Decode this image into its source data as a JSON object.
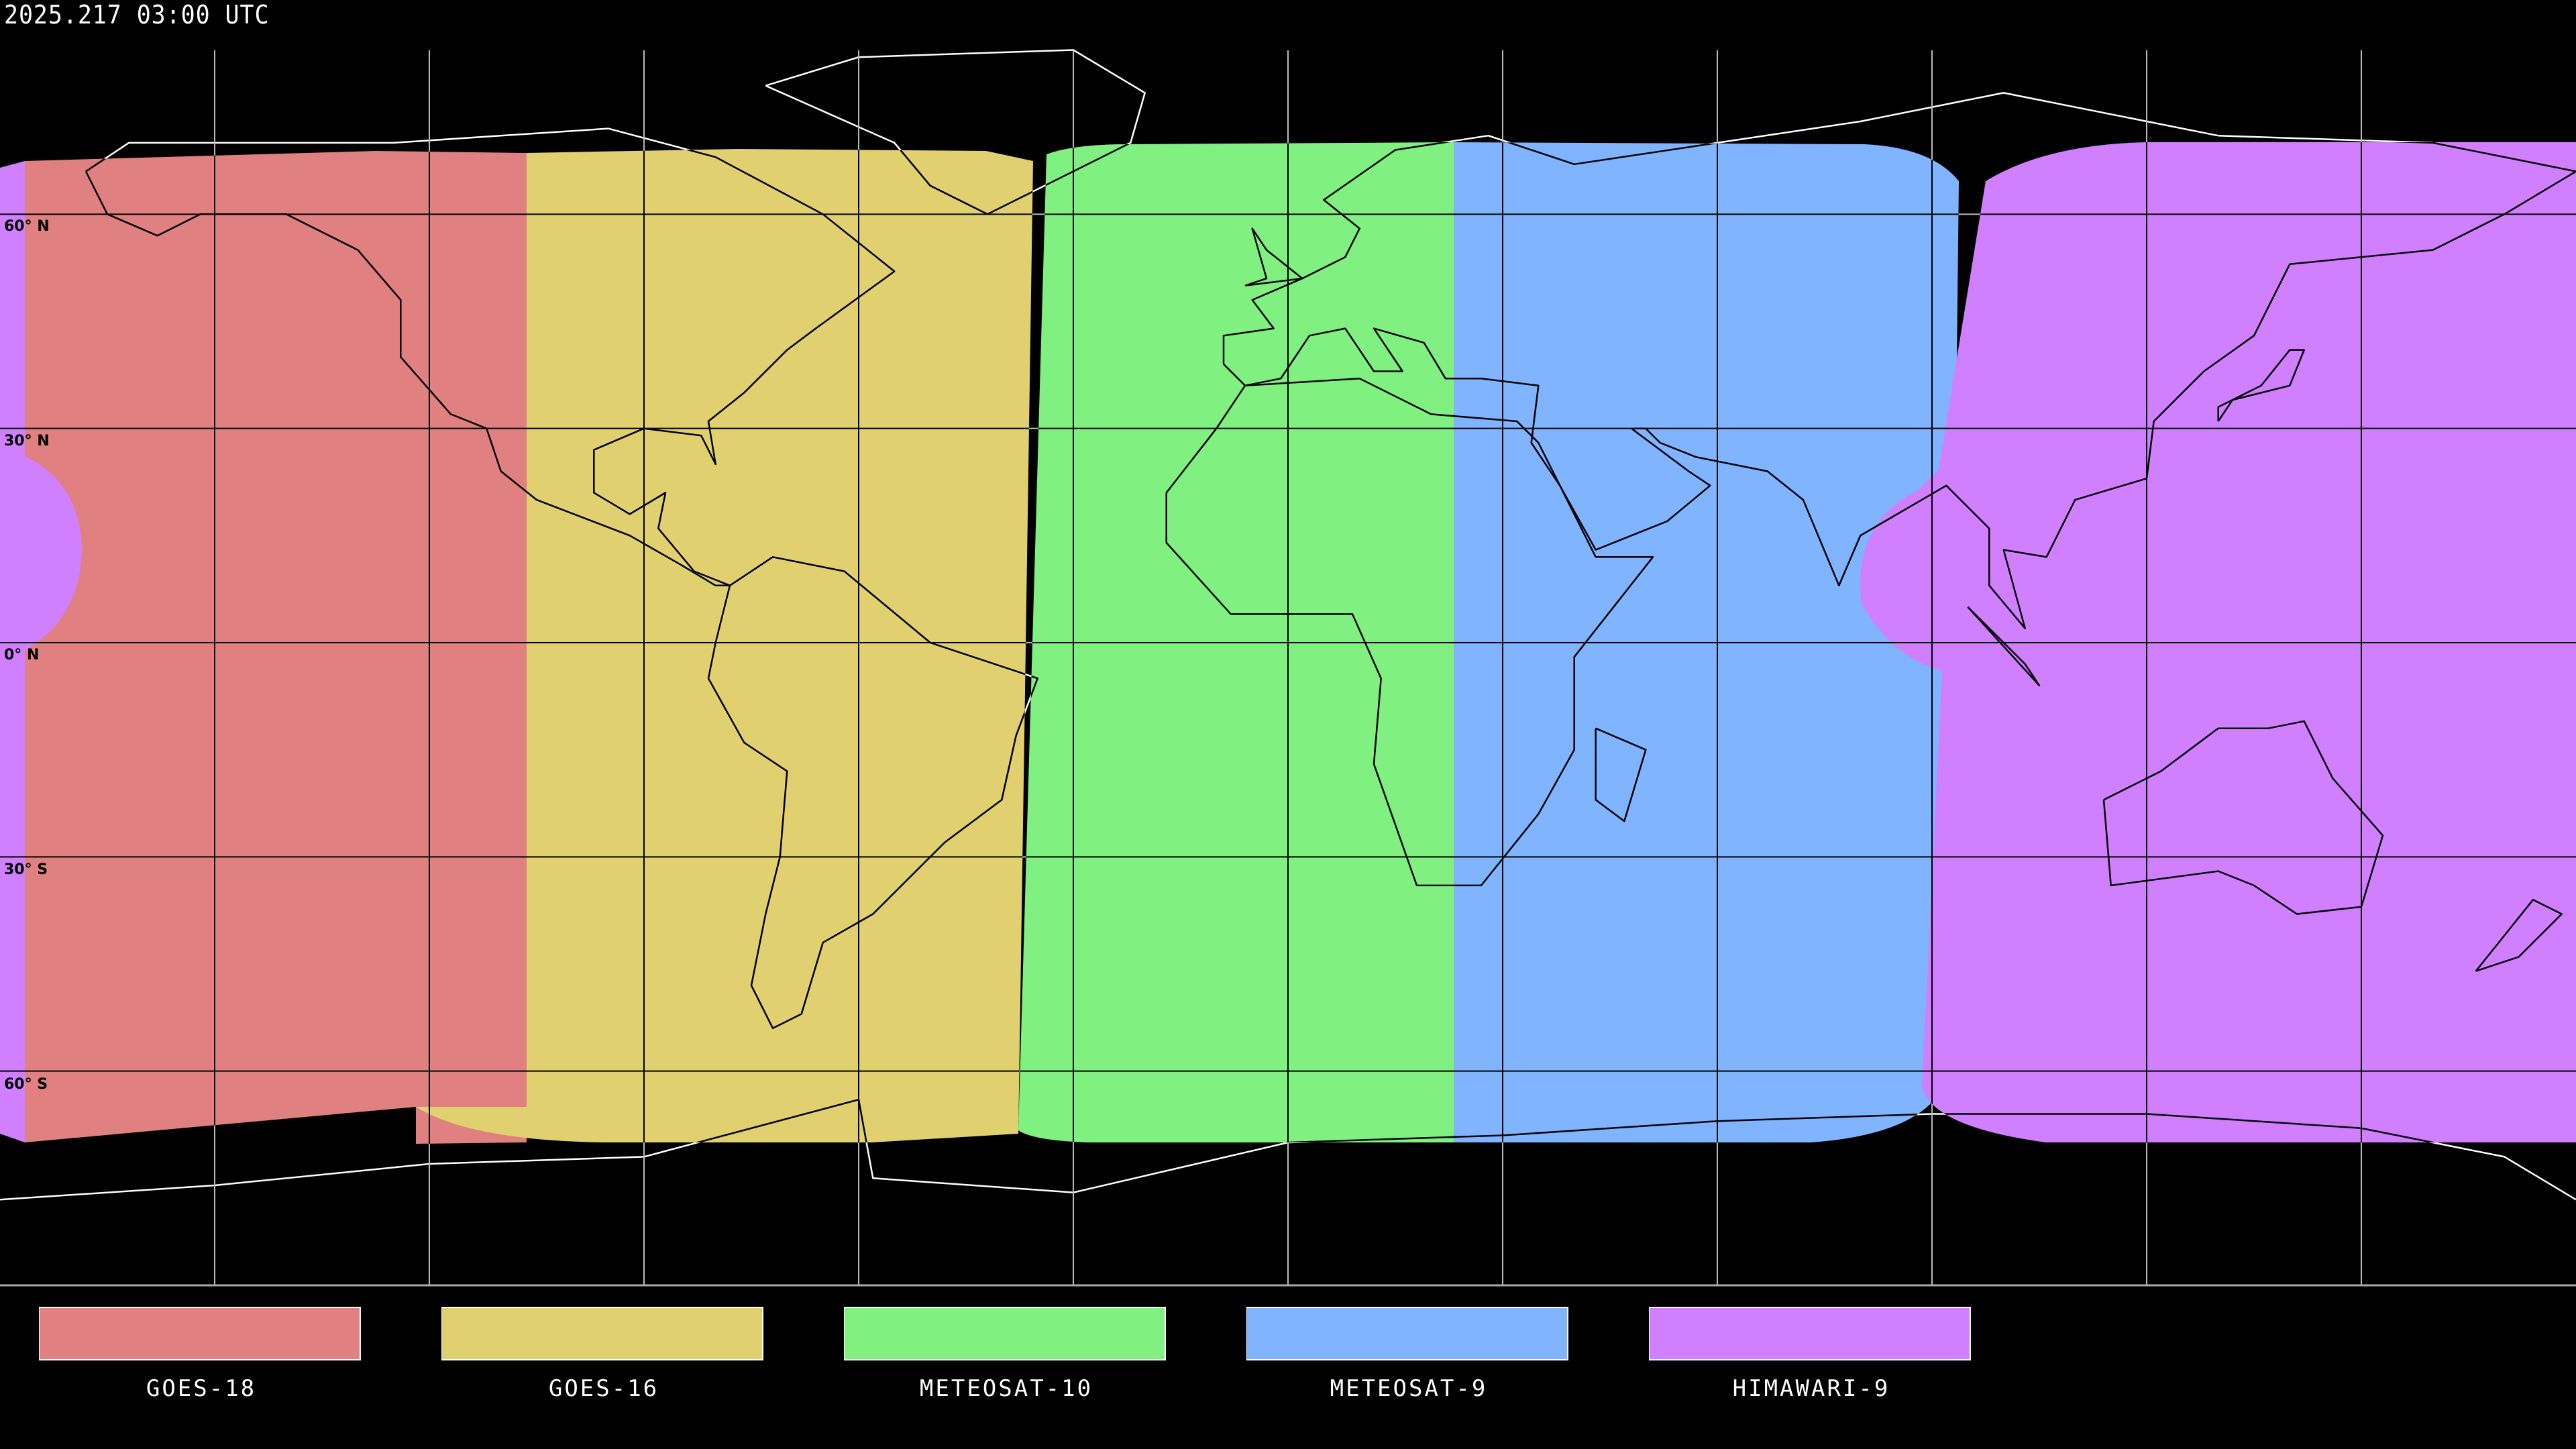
{
  "header": {
    "timestamp": "2025.217 03:00 UTC"
  },
  "map": {
    "projection": "equirectangular",
    "graticule_interval_deg": 30,
    "lat_labels": [
      "60° N",
      "30° N",
      "0° N",
      "30° S",
      "60° S"
    ],
    "background": "#000000"
  },
  "legend": [
    {
      "label": "GOES-18",
      "color": "#e08080"
    },
    {
      "label": "GOES-16",
      "color": "#e0d070"
    },
    {
      "label": "METEOSAT-10",
      "color": "#80f080"
    },
    {
      "label": "METEOSAT-9",
      "color": "#80b4ff"
    },
    {
      "label": "HIMAWARI-9",
      "color": "#d080ff"
    }
  ]
}
